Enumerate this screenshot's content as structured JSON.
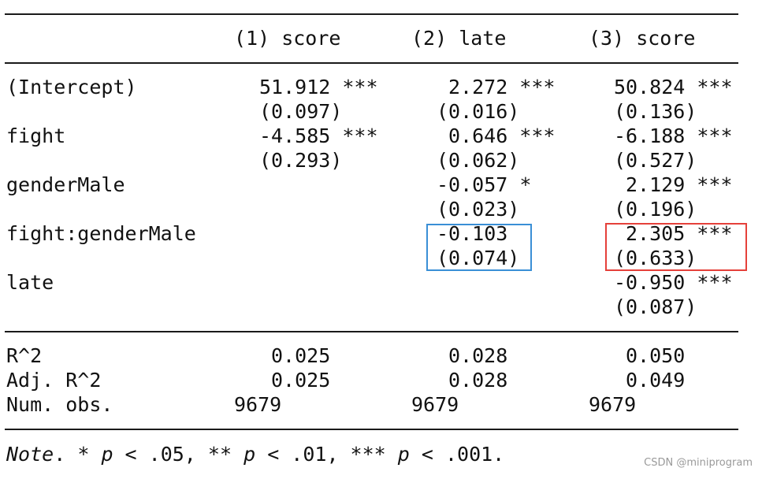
{
  "table": {
    "headers": [
      "(1) score",
      "(2) late",
      "(3) score"
    ],
    "rows": [
      {
        "label": "(Intercept)",
        "cells": [
          {
            "est": "51.912 ***",
            "se": "(0.097)"
          },
          {
            "est": "2.272 ***",
            "se": "(0.016)"
          },
          {
            "est": "50.824 ***",
            "se": "(0.136)"
          }
        ]
      },
      {
        "label": "fight",
        "cells": [
          {
            "est": "-4.585 ***",
            "se": "(0.293)"
          },
          {
            "est": "0.646 ***",
            "se": "(0.062)"
          },
          {
            "est": "-6.188 ***",
            "se": "(0.527)"
          }
        ]
      },
      {
        "label": "genderMale",
        "cells": [
          {
            "est": "",
            "se": ""
          },
          {
            "est": "-0.057 *",
            "se": "(0.023)"
          },
          {
            "est": "2.129 ***",
            "se": "(0.196)"
          }
        ]
      },
      {
        "label": "fight:genderMale",
        "cells": [
          {
            "est": "",
            "se": ""
          },
          {
            "est": "-0.103",
            "se": "(0.074)"
          },
          {
            "est": "2.305 ***",
            "se": "(0.633)"
          }
        ]
      },
      {
        "label": "late",
        "cells": [
          {
            "est": "",
            "se": ""
          },
          {
            "est": "",
            "se": ""
          },
          {
            "est": "-0.950 ***",
            "se": "(0.087)"
          }
        ]
      }
    ],
    "stats": [
      {
        "label": "R^2",
        "values": [
          "0.025",
          "0.028",
          "0.050"
        ]
      },
      {
        "label": "Adj. R^2",
        "values": [
          "0.025",
          "0.028",
          "0.049"
        ]
      },
      {
        "label": "Num. obs.",
        "values": [
          "9679",
          "9679",
          "9679"
        ]
      }
    ]
  },
  "note": {
    "prefix": "Note",
    "text_1": ". * ",
    "p": "p",
    "text_2": " < .05, ** ",
    "text_3": " < .01, *** ",
    "text_4": " < .001."
  },
  "highlights": {
    "blue_box_color": "#3a8fd6",
    "red_box_color": "#e5403a"
  },
  "watermark": "CSDN @miniprogram"
}
